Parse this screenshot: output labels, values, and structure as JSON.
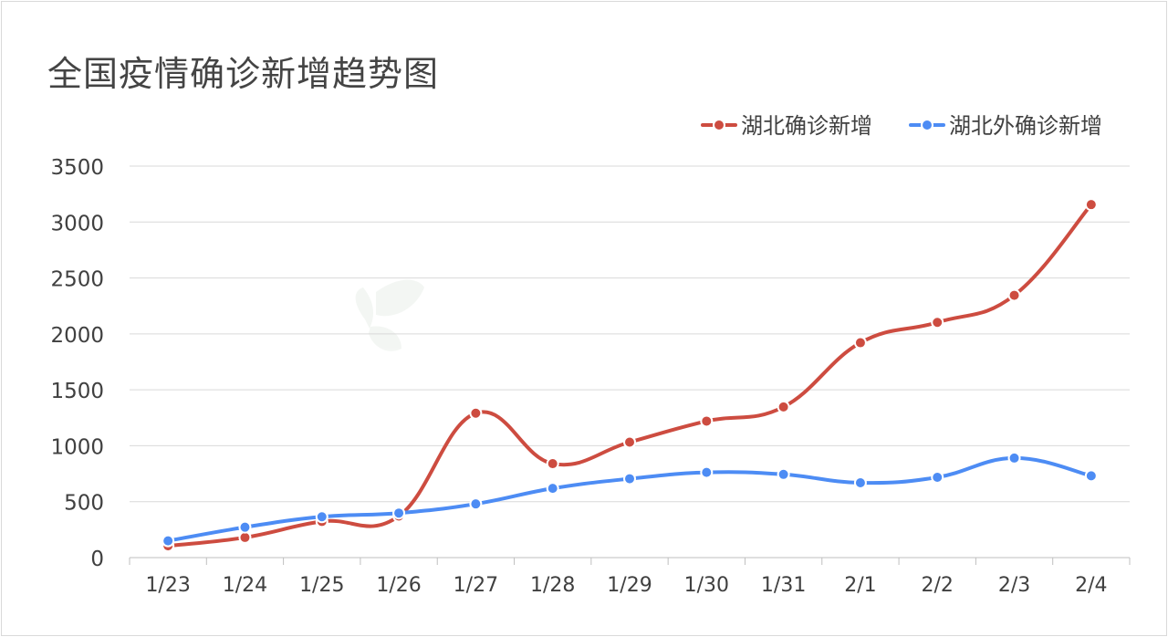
{
  "chart_data": {
    "type": "line",
    "title": "全国疫情确诊新增趋势图",
    "xlabel": "",
    "ylabel": "",
    "categories": [
      "1/23",
      "1/24",
      "1/25",
      "1/26",
      "1/27",
      "1/28",
      "1/29",
      "1/30",
      "1/31",
      "2/1",
      "2/2",
      "2/3",
      "2/4"
    ],
    "ylim": [
      0,
      3500
    ],
    "yticks": [
      0,
      500,
      1000,
      1500,
      2000,
      2500,
      3000,
      3500
    ],
    "grid": true,
    "legend_position": "top-right",
    "smooth": true,
    "series": [
      {
        "name": "湖北确诊新增",
        "color": "#cd4c40",
        "values": [
          105,
          180,
          323,
          371,
          1291,
          840,
          1032,
          1220,
          1347,
          1921,
          2103,
          2345,
          3156
        ]
      },
      {
        "name": "湖北外确诊新增",
        "color": "#4d8cf4",
        "values": [
          150,
          272,
          365,
          398,
          480,
          619,
          705,
          762,
          744,
          669,
          718,
          890,
          731
        ]
      }
    ]
  }
}
